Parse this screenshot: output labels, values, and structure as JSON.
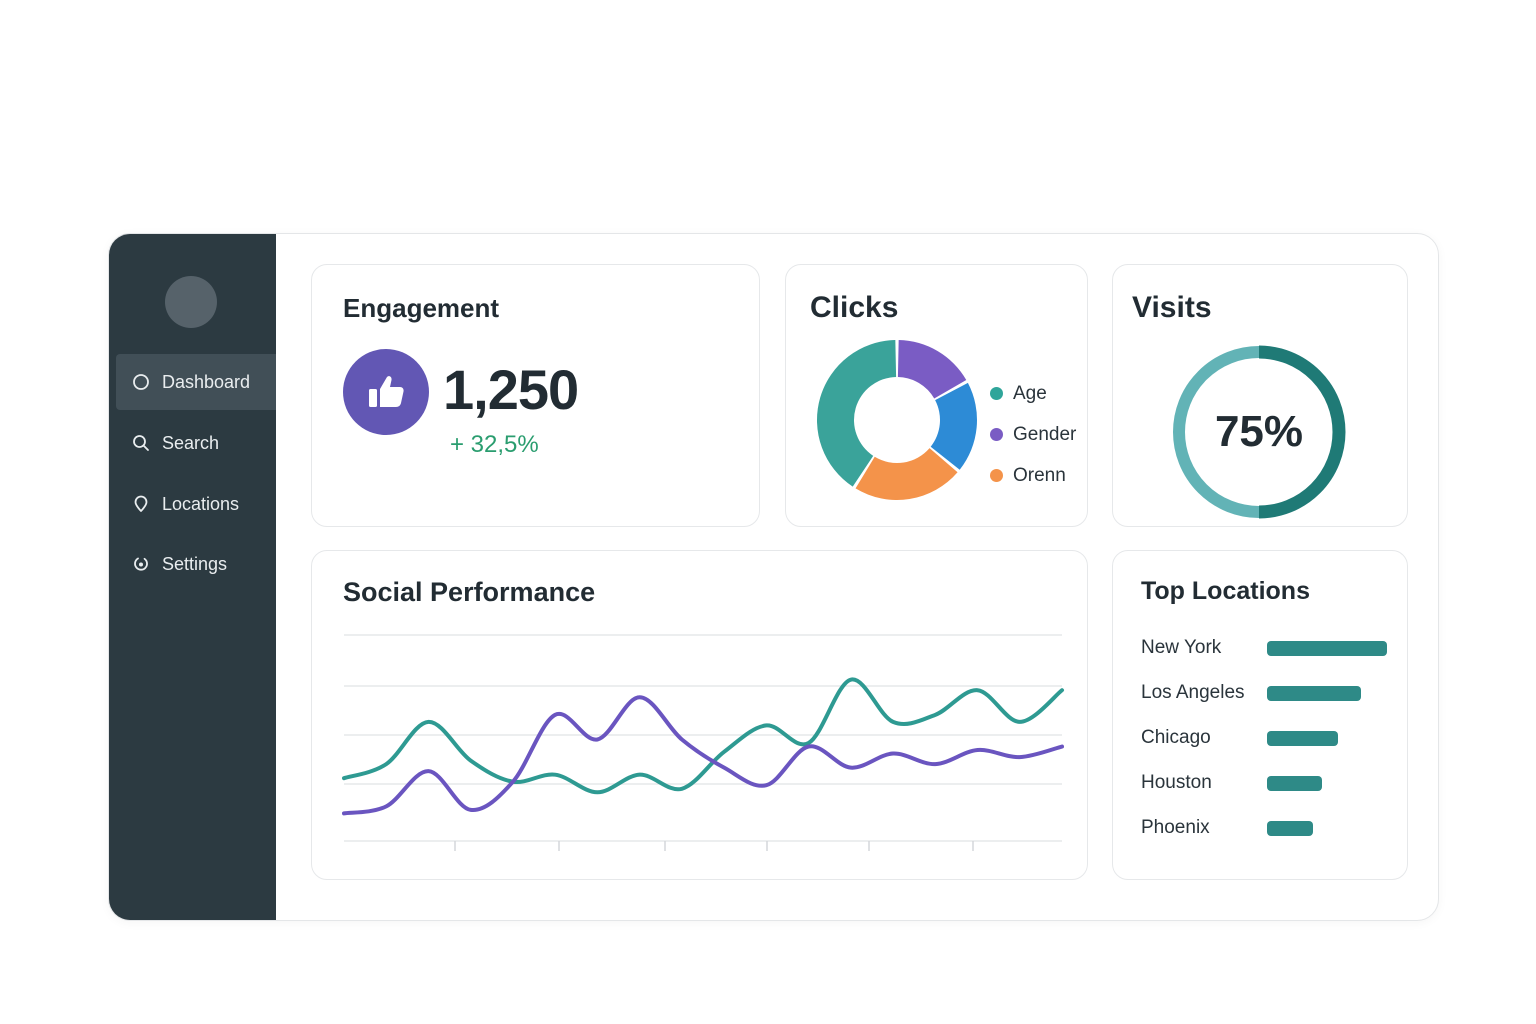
{
  "sidebar": {
    "items": [
      {
        "label": "Dashboard",
        "icon": "circle-icon",
        "active": true
      },
      {
        "label": "Search",
        "icon": "search-icon",
        "active": false
      },
      {
        "label": "Locations",
        "icon": "location-pin-icon",
        "active": false
      },
      {
        "label": "Settings",
        "icon": "settings-icon",
        "active": false
      }
    ]
  },
  "engagement": {
    "title": "Engagement",
    "icon": "thumbs-up-icon",
    "value": "1,250",
    "delta": "+ 32,5%"
  },
  "clicks": {
    "title": "Clicks",
    "legend": [
      {
        "label": "Age",
        "color": "#2fa59a"
      },
      {
        "label": "Gender",
        "color": "#7a5cc4"
      },
      {
        "label": "Orenn",
        "color": "#f4934a"
      }
    ]
  },
  "visits": {
    "title": "Visits",
    "percent_label": "75%"
  },
  "social": {
    "title": "Social Performance"
  },
  "top_locations": {
    "title": "Top Locations"
  },
  "colors": {
    "sidebar_bg": "#2c3a41",
    "teal": "#2e9a92",
    "purple": "#6a55c0",
    "blue": "#2d8bd6",
    "orange": "#f4934a",
    "positive": "#2a9d6f"
  },
  "chart_data": [
    {
      "type": "pie",
      "variant": "donut",
      "title": "Clicks",
      "slices": [
        {
          "name": "Purple segment",
          "value": 17,
          "color": "#7a5cc4"
        },
        {
          "name": "Blue segment",
          "value": 19,
          "color": "#2d8bd6"
        },
        {
          "name": "Orenn",
          "value": 23,
          "color": "#f4934a"
        },
        {
          "name": "Age",
          "value": 41,
          "color": "#3aa39a"
        }
      ]
    },
    {
      "type": "pie",
      "variant": "progress-ring",
      "title": "Visits",
      "value": 0.75,
      "colors": {
        "filled": "#1f7a76",
        "remainder": "#62b3b6"
      }
    },
    {
      "type": "line",
      "title": "Social Performance",
      "x": [
        0,
        1,
        2,
        3,
        4,
        5,
        6,
        7,
        8,
        9,
        10,
        11,
        12,
        13,
        14,
        15,
        16,
        17
      ],
      "ylim": [
        0,
        100
      ],
      "grid": true,
      "series": [
        {
          "color": "#2e9a92",
          "values": [
            30,
            38,
            62,
            40,
            28,
            32,
            22,
            32,
            24,
            45,
            60,
            50,
            86,
            62,
            66,
            80,
            62,
            80
          ]
        },
        {
          "color": "#6a55c0",
          "values": [
            10,
            14,
            34,
            12,
            28,
            66,
            52,
            76,
            52,
            36,
            26,
            48,
            36,
            44,
            38,
            46,
            42,
            48
          ]
        }
      ]
    },
    {
      "type": "bar",
      "orientation": "horizontal",
      "title": "Top Locations",
      "categories": [
        "New York",
        "Los Angeles",
        "Chicago",
        "Houston",
        "Phoenix"
      ],
      "values": [
        100,
        78,
        59,
        46,
        38
      ],
      "xlim": [
        0,
        100
      ],
      "color": "#2e8a87"
    }
  ]
}
